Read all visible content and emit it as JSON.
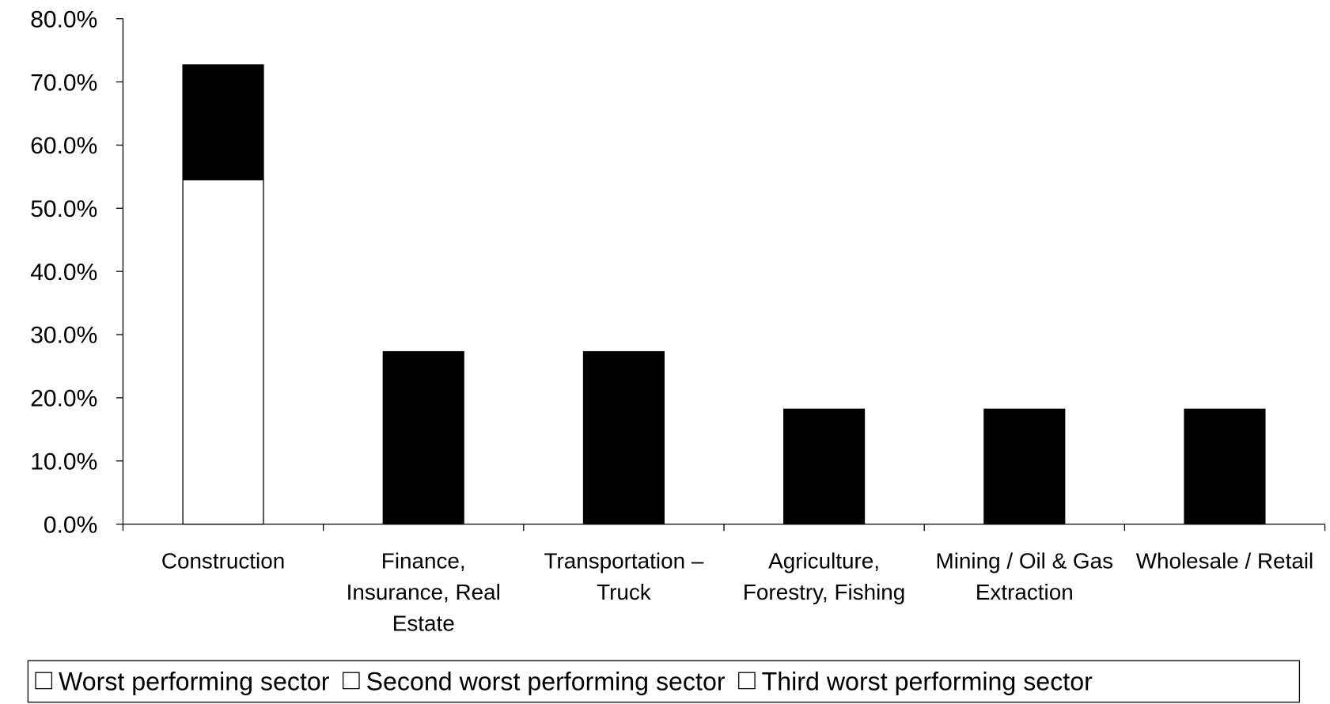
{
  "chart_data": {
    "type": "stacked_bar",
    "categories": [
      "Construction",
      "Finance, Insurance, Real Estate",
      "Transportation – Truck",
      "Agriculture, Forestry, Fishing",
      "Mining / Oil & Gas Extraction",
      "Wholesale / Retail"
    ],
    "series": [
      {
        "name": "Worst performing sector",
        "color": "#ffffff",
        "values": [
          54.5,
          0,
          0,
          0,
          0,
          0
        ]
      },
      {
        "name": "Second worst performing sector",
        "color": "#000000",
        "values": [
          18.2,
          27.3,
          27.3,
          18.2,
          18.2,
          18.2
        ]
      },
      {
        "name": "Third worst performing sector",
        "color": "#000000",
        "values": [
          0,
          0,
          0,
          0,
          0,
          0
        ]
      }
    ],
    "ylim": [
      0,
      80
    ],
    "yticks": [
      {
        "value": 0,
        "label": "0.0%"
      },
      {
        "value": 10,
        "label": "10.0%"
      },
      {
        "value": 20,
        "label": "20.0%"
      },
      {
        "value": 30,
        "label": "30.0%"
      },
      {
        "value": 40,
        "label": "40.0%"
      },
      {
        "value": 50,
        "label": "50.0%"
      },
      {
        "value": 60,
        "label": "60.0%"
      },
      {
        "value": 70,
        "label": "70.0%"
      },
      {
        "value": 80,
        "label": "80.0%"
      }
    ],
    "grid": false,
    "legend": "bottom"
  }
}
